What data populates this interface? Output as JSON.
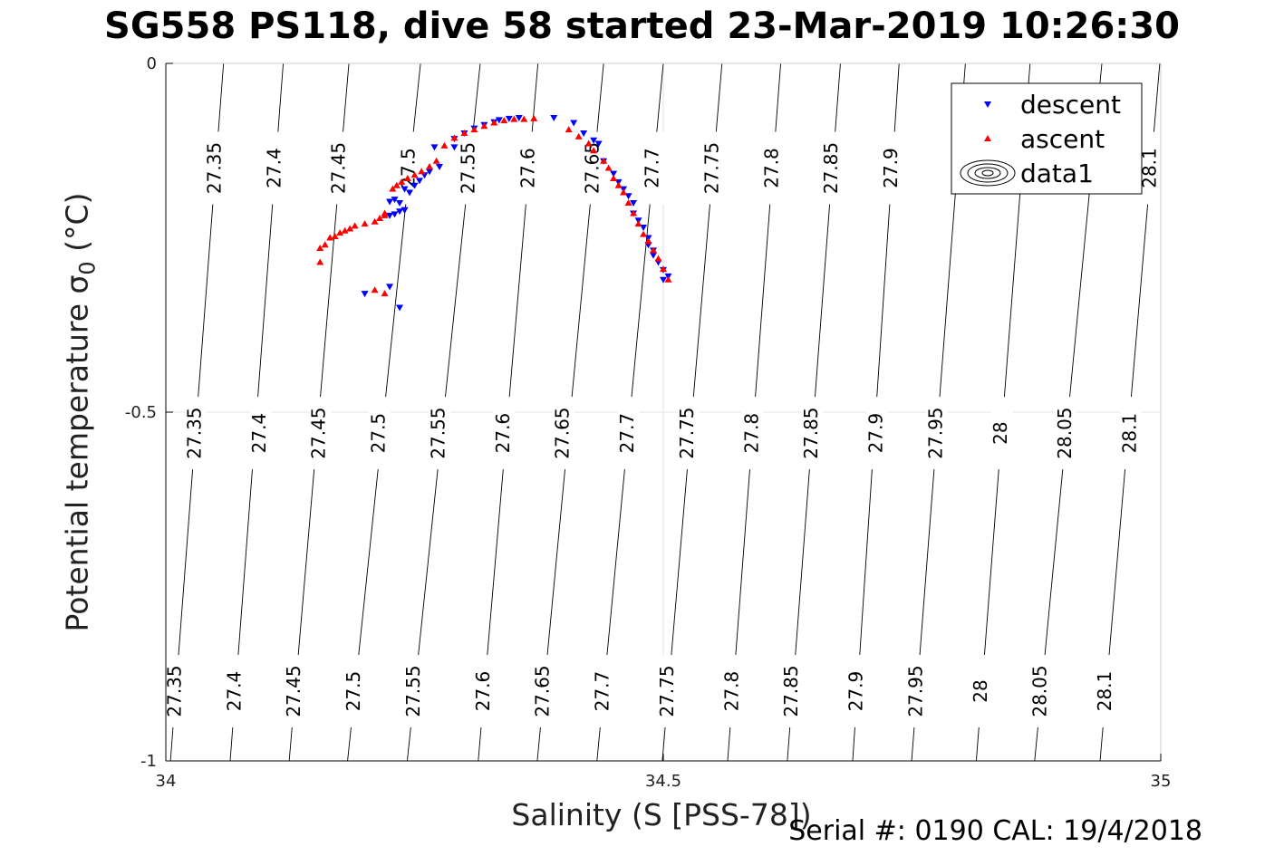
{
  "chart_data": {
    "type": "scatter",
    "title": "SG558 PS118, dive 58 started 23-Mar-2019 10:26:30",
    "xlabel": "Salinity (S [PSS-78])",
    "ylabel": "Potential temperature σ₀ (°C)",
    "xlim": [
      34,
      35
    ],
    "ylim": [
      -1,
      0
    ],
    "xticks": [
      "34",
      "34.5",
      "35"
    ],
    "yticks": [
      "0",
      "-0.5",
      "-1"
    ],
    "grid": true,
    "legend": {
      "placement": "top-right",
      "entries": [
        "descent",
        "ascent",
        "data1"
      ]
    },
    "contours": {
      "name": "data1",
      "rows": [
        {
          "labels": [
            "27.35",
            "27.4",
            "27.45",
            "27.5",
            "27.55",
            "27.6",
            "27.65",
            "27.7",
            "27.75",
            "27.8",
            "27.85",
            "27.9",
            "27.95",
            "28",
            "28.05",
            "28.1"
          ],
          "x": [
            34.01,
            34.07,
            34.13,
            34.19,
            34.25,
            34.32,
            34.38,
            34.44,
            34.505,
            34.57,
            34.63,
            34.695,
            34.755,
            34.82,
            34.88,
            34.945
          ]
        },
        {
          "labels": [
            "27.35",
            "27.4",
            "27.45",
            "27.5",
            "27.55",
            "27.6",
            "27.65",
            "27.7",
            "27.75",
            "27.8",
            "27.85",
            "27.9",
            "27.95",
            "28",
            "28.05",
            "28.1"
          ],
          "x": [
            34.03,
            34.095,
            34.155,
            34.215,
            34.275,
            34.34,
            34.4,
            34.465,
            34.525,
            34.59,
            34.65,
            34.715,
            34.775,
            34.84,
            34.905,
            34.97
          ]
        },
        {
          "labels": [
            "27.35",
            "27.4",
            "27.45",
            "27.5",
            "27.55",
            "27.6",
            "27.65",
            "27.7",
            "27.75",
            "27.8",
            "27.85",
            "27.9",
            "28.1"
          ],
          "x": [
            34.05,
            34.11,
            34.175,
            34.245,
            34.305,
            34.365,
            34.43,
            34.49,
            34.55,
            34.61,
            34.67,
            34.73,
            34.99
          ]
        }
      ]
    },
    "series": [
      {
        "name": "descent",
        "color": "#0000ff",
        "marker": "triangle-down",
        "x": [
          34.355,
          34.345,
          34.335,
          34.33,
          34.32,
          34.31,
          34.3,
          34.29,
          34.27,
          34.24,
          34.225,
          34.24,
          34.235,
          34.23,
          34.225,
          34.235,
          34.23,
          34.245,
          34.25,
          34.255,
          34.26,
          34.265,
          34.275,
          34.29,
          34.39,
          34.41,
          34.42,
          34.43,
          34.435,
          34.44,
          34.45,
          34.455,
          34.46,
          34.465,
          34.47,
          34.47,
          34.475,
          34.48,
          34.485,
          34.485,
          34.49,
          34.49,
          34.495,
          34.5,
          34.505,
          34.5,
          34.2,
          34.225,
          34.235,
          34.24
        ],
        "y": [
          -0.078,
          -0.079,
          -0.081,
          -0.084,
          -0.088,
          -0.093,
          -0.1,
          -0.108,
          -0.12,
          -0.18,
          -0.198,
          -0.21,
          -0.212,
          -0.216,
          -0.218,
          -0.2,
          -0.195,
          -0.185,
          -0.175,
          -0.168,
          -0.16,
          -0.155,
          -0.148,
          -0.12,
          -0.078,
          -0.085,
          -0.1,
          -0.11,
          -0.115,
          -0.14,
          -0.158,
          -0.17,
          -0.18,
          -0.19,
          -0.2,
          -0.215,
          -0.225,
          -0.235,
          -0.25,
          -0.26,
          -0.268,
          -0.275,
          -0.285,
          -0.296,
          -0.305,
          -0.31,
          -0.33,
          -0.32,
          -0.35,
          -0.21
        ]
      },
      {
        "name": "ascent",
        "color": "#ff0000",
        "marker": "triangle-up",
        "x": [
          34.155,
          34.16,
          34.165,
          34.17,
          34.175,
          34.18,
          34.185,
          34.19,
          34.2,
          34.21,
          34.215,
          34.22,
          34.22,
          34.155,
          34.228,
          34.232,
          34.237,
          34.243,
          34.25,
          34.257,
          34.265,
          34.272,
          34.28,
          34.29,
          34.3,
          34.31,
          34.32,
          34.33,
          34.34,
          34.35,
          34.36,
          34.37,
          34.405,
          34.415,
          34.425,
          34.43,
          34.44,
          34.445,
          34.45,
          34.455,
          34.46,
          34.465,
          34.47,
          34.475,
          34.48,
          34.485,
          34.49,
          34.495,
          34.5,
          34.505,
          34.21,
          34.22
        ],
        "y": [
          -0.265,
          -0.26,
          -0.25,
          -0.248,
          -0.243,
          -0.24,
          -0.237,
          -0.233,
          -0.23,
          -0.227,
          -0.222,
          -0.218,
          -0.215,
          -0.285,
          -0.18,
          -0.175,
          -0.17,
          -0.165,
          -0.16,
          -0.155,
          -0.148,
          -0.14,
          -0.118,
          -0.107,
          -0.1,
          -0.095,
          -0.09,
          -0.085,
          -0.082,
          -0.08,
          -0.08,
          -0.079,
          -0.095,
          -0.105,
          -0.115,
          -0.125,
          -0.14,
          -0.15,
          -0.165,
          -0.175,
          -0.185,
          -0.2,
          -0.215,
          -0.23,
          -0.245,
          -0.255,
          -0.268,
          -0.28,
          -0.295,
          -0.31,
          -0.325,
          -0.33
        ]
      }
    ],
    "footer": "Serial #: 0190  CAL: 19/4/2018"
  }
}
